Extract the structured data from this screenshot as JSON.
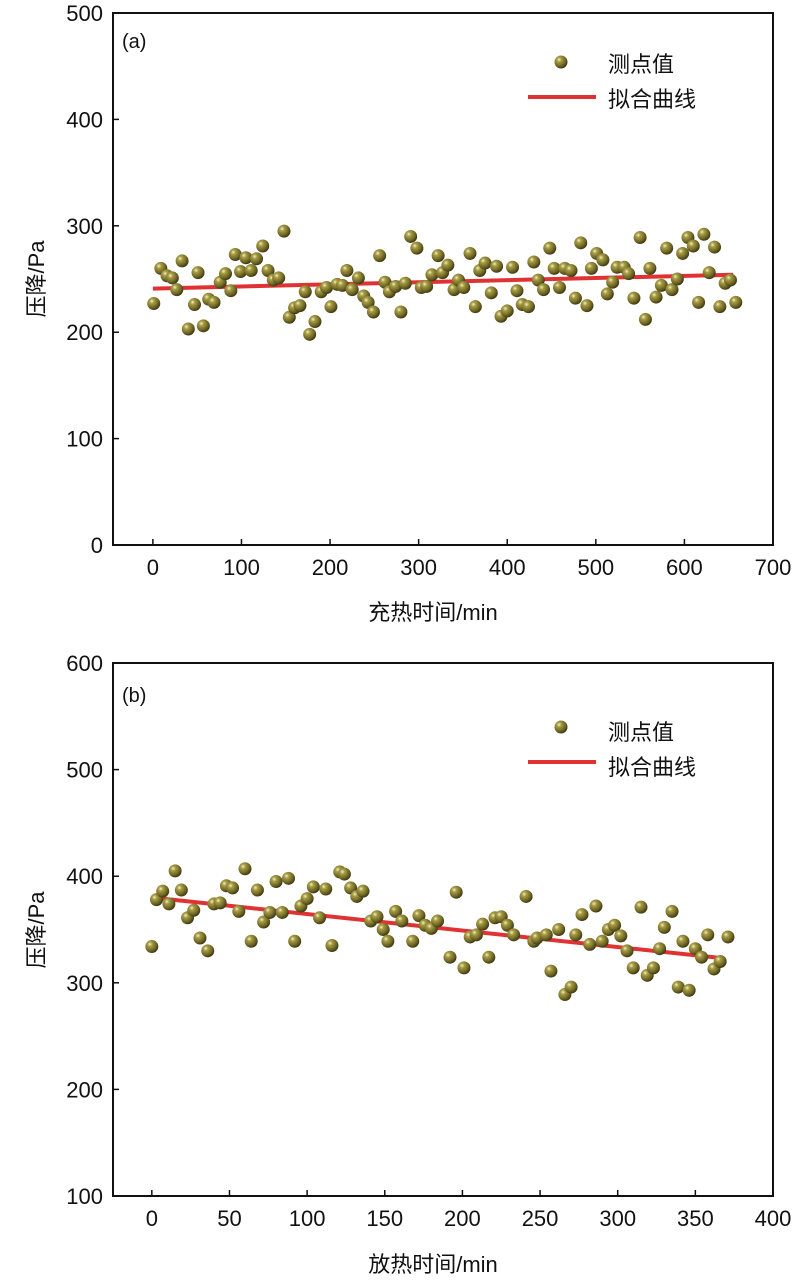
{
  "colors": {
    "points": "#7a7228",
    "fit_line": "#e03232",
    "axes": "#111111"
  },
  "chart_data": [
    {
      "type": "scatter",
      "panel_label": "(a)",
      "xlabel": "充热时间/min",
      "ylabel": "压降/Pa",
      "xlim": [
        -45,
        700
      ],
      "ylim": [
        0,
        500
      ],
      "xticks": [
        0,
        100,
        200,
        300,
        400,
        500,
        600,
        700
      ],
      "yticks": [
        0,
        100,
        200,
        300,
        400,
        500
      ],
      "grid": false,
      "legend": {
        "placement": "top-right",
        "entries": [
          "测点值",
          "拟合曲线"
        ]
      },
      "series": [
        {
          "name": "测点值",
          "type": "scatter",
          "x": [
            1,
            9,
            16,
            22,
            27,
            33,
            40,
            47,
            51,
            57,
            63,
            69,
            76,
            82,
            88,
            93,
            99,
            105,
            111,
            117,
            124,
            130,
            136,
            142,
            148,
            154,
            160,
            166,
            172,
            177,
            183,
            190,
            196,
            201,
            208,
            214,
            219,
            225,
            232,
            238,
            243,
            249,
            256,
            262,
            267,
            274,
            280,
            285,
            291,
            298,
            303,
            309,
            315,
            322,
            327,
            333,
            340,
            345,
            351,
            358,
            364,
            369,
            375,
            382,
            388,
            393,
            400,
            406,
            411,
            417,
            424,
            430,
            435,
            441,
            448,
            453,
            459,
            465,
            472,
            477,
            483,
            490,
            495,
            501,
            508,
            513,
            519,
            524,
            532,
            537,
            543,
            550,
            556,
            561,
            568,
            574,
            580,
            586,
            592,
            598,
            604,
            610,
            616,
            622,
            628,
            634,
            640,
            646,
            652,
            658
          ],
          "y": [
            227,
            260,
            253,
            251,
            240,
            267,
            203,
            226,
            256,
            206,
            231,
            228,
            247,
            255,
            239,
            273,
            257,
            270,
            258,
            269,
            281,
            258,
            249,
            251,
            295,
            214,
            223,
            225,
            238,
            198,
            210,
            238,
            242,
            224,
            245,
            244,
            258,
            240,
            251,
            234,
            228,
            219,
            272,
            247,
            238,
            243,
            219,
            246,
            290,
            279,
            242,
            243,
            254,
            272,
            256,
            263,
            240,
            249,
            242,
            274,
            224,
            258,
            265,
            237,
            262,
            215,
            220,
            261,
            239,
            226,
            224,
            266,
            249,
            240,
            279,
            260,
            242,
            260,
            258,
            232,
            284,
            225,
            260,
            274,
            268,
            236,
            247,
            261,
            261,
            255,
            232,
            289,
            212,
            260,
            233,
            244,
            279,
            240,
            250,
            274,
            289,
            281,
            228,
            292,
            256,
            280,
            224,
            246,
            249,
            228
          ]
        },
        {
          "name": "拟合曲线",
          "type": "line",
          "x": [
            0,
            655
          ],
          "y": [
            241,
            254
          ]
        }
      ]
    },
    {
      "type": "scatter",
      "panel_label": "(b)",
      "xlabel": "放热时间/min",
      "ylabel": "压降/Pa",
      "xlim": [
        -25,
        400
      ],
      "ylim": [
        100,
        600
      ],
      "xticks": [
        0,
        50,
        100,
        150,
        200,
        250,
        300,
        350,
        400
      ],
      "yticks": [
        100,
        200,
        300,
        400,
        500,
        600
      ],
      "grid": false,
      "legend": {
        "placement": "top-right",
        "entries": [
          "测点值",
          "拟合曲线"
        ]
      },
      "series": [
        {
          "name": "测点值",
          "type": "scatter",
          "x": [
            0,
            3,
            7,
            11,
            15,
            19,
            23,
            27,
            31,
            36,
            40,
            44,
            48,
            52,
            56,
            60,
            64,
            68,
            72,
            76,
            80,
            84,
            88,
            92,
            96,
            100,
            104,
            108,
            112,
            116,
            121,
            124,
            128,
            132,
            136,
            141,
            145,
            149,
            152,
            157,
            161,
            168,
            172,
            176,
            180,
            184,
            192,
            196,
            201,
            205,
            209,
            213,
            217,
            221,
            225,
            229,
            233,
            241,
            246,
            248,
            254,
            257,
            262,
            266,
            270,
            273,
            277,
            282,
            286,
            290,
            294,
            298,
            302,
            306,
            310,
            315,
            319,
            323,
            327,
            330,
            335,
            339,
            342,
            346,
            350,
            354,
            358,
            362,
            366,
            371
          ],
          "y": [
            334,
            378,
            386,
            374,
            405,
            387,
            361,
            368,
            342,
            330,
            374,
            375,
            391,
            389,
            367,
            407,
            339,
            387,
            357,
            366,
            395,
            366,
            398,
            339,
            372,
            379,
            390,
            361,
            388,
            335,
            404,
            402,
            389,
            381,
            386,
            358,
            362,
            350,
            339,
            367,
            358,
            339,
            363,
            354,
            351,
            358,
            324,
            385,
            314,
            343,
            345,
            355,
            324,
            361,
            362,
            354,
            345,
            381,
            339,
            342,
            345,
            311,
            350,
            289,
            296,
            345,
            364,
            336,
            372,
            339,
            350,
            354,
            344,
            330,
            314,
            371,
            307,
            314,
            332,
            352,
            367,
            296,
            339,
            293,
            332,
            324,
            345,
            313,
            320,
            343
          ]
        },
        {
          "name": "拟合曲线",
          "type": "line",
          "x": [
            0,
            368
          ],
          "y": [
            380,
            323
          ]
        }
      ]
    }
  ]
}
